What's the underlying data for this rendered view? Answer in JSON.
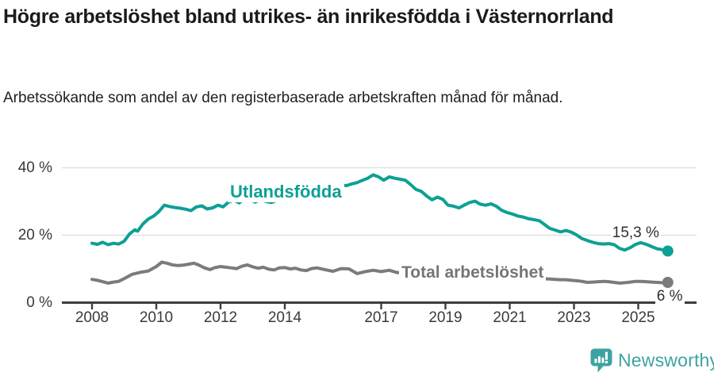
{
  "header": {
    "title": "Högre arbetslöshet bland utrikes- än inrikesfödda i Västernorrland",
    "subtitle": "Arbetssökande som andel av den registerbaserade arbetskraften månad för månad."
  },
  "chart_data": {
    "type": "line",
    "title": "Högre arbetslöshet bland utrikes- än inrikesfödda i Västernorrland",
    "subtitle": "Arbetssökande som andel av den registerbaserade arbetskraften månad för månad.",
    "xlabel": "",
    "ylabel": "",
    "x_ticks": [
      2008,
      2010,
      2012,
      2014,
      2017,
      2019,
      2021,
      2023,
      2025
    ],
    "x_range": [
      2007.6,
      2026.8
    ],
    "y_ticks": [
      {
        "value": 40,
        "label": "40 %"
      },
      {
        "value": 20,
        "label": "20 %"
      },
      {
        "value": 0,
        "label": "0 %"
      }
    ],
    "ylim": [
      0,
      43
    ],
    "grid": true,
    "legend_position": "inline-labels",
    "series": [
      {
        "name": "Utlandsfödda",
        "color": "#0da094",
        "end_label": "15,3 %",
        "end_value": 15.3,
        "points": [
          [
            2008.0,
            17.6
          ],
          [
            2008.17,
            17.3
          ],
          [
            2008.33,
            17.9
          ],
          [
            2008.5,
            17.2
          ],
          [
            2008.67,
            17.6
          ],
          [
            2008.83,
            17.4
          ],
          [
            2009.0,
            18.2
          ],
          [
            2009.17,
            20.4
          ],
          [
            2009.33,
            21.6
          ],
          [
            2009.42,
            21.2
          ],
          [
            2009.58,
            23.3
          ],
          [
            2009.75,
            24.8
          ],
          [
            2009.92,
            25.7
          ],
          [
            2010.08,
            27.0
          ],
          [
            2010.25,
            28.9
          ],
          [
            2010.42,
            28.5
          ],
          [
            2010.58,
            28.2
          ],
          [
            2010.75,
            28.0
          ],
          [
            2010.92,
            27.7
          ],
          [
            2011.08,
            27.3
          ],
          [
            2011.25,
            28.4
          ],
          [
            2011.42,
            28.7
          ],
          [
            2011.58,
            27.8
          ],
          [
            2011.75,
            28.1
          ],
          [
            2011.92,
            28.9
          ],
          [
            2012.08,
            28.4
          ],
          [
            2012.25,
            29.8
          ],
          [
            2012.42,
            30.4
          ],
          [
            2012.58,
            29.6
          ],
          [
            2012.75,
            31.0
          ],
          [
            2012.92,
            30.5
          ],
          [
            2013.08,
            29.8
          ],
          [
            2013.25,
            30.6
          ],
          [
            2013.42,
            30.0
          ],
          [
            2013.58,
            29.7
          ],
          [
            2013.75,
            30.3
          ],
          [
            2013.92,
            30.6
          ],
          [
            2014.08,
            30.2
          ],
          [
            2014.25,
            31.2
          ],
          [
            2014.42,
            31.4
          ],
          [
            2014.58,
            31.1
          ],
          [
            2014.75,
            31.9
          ],
          [
            2014.92,
            32.4
          ],
          [
            2015.08,
            32.9
          ],
          [
            2015.25,
            33.9
          ],
          [
            2015.42,
            34.6
          ],
          [
            2015.58,
            35.3
          ],
          [
            2015.75,
            34.9
          ],
          [
            2015.92,
            34.7
          ],
          [
            2016.08,
            35.2
          ],
          [
            2016.25,
            35.6
          ],
          [
            2016.42,
            36.3
          ],
          [
            2016.58,
            36.9
          ],
          [
            2016.75,
            37.9
          ],
          [
            2016.92,
            37.3
          ],
          [
            2017.08,
            36.3
          ],
          [
            2017.25,
            37.3
          ],
          [
            2017.42,
            36.9
          ],
          [
            2017.58,
            36.6
          ],
          [
            2017.75,
            36.3
          ],
          [
            2017.92,
            35.0
          ],
          [
            2018.08,
            33.6
          ],
          [
            2018.25,
            33.0
          ],
          [
            2018.42,
            31.6
          ],
          [
            2018.58,
            30.5
          ],
          [
            2018.75,
            31.3
          ],
          [
            2018.92,
            30.6
          ],
          [
            2019.08,
            28.9
          ],
          [
            2019.25,
            28.6
          ],
          [
            2019.42,
            28.1
          ],
          [
            2019.58,
            28.9
          ],
          [
            2019.75,
            29.7
          ],
          [
            2019.92,
            30.1
          ],
          [
            2020.08,
            29.2
          ],
          [
            2020.25,
            28.9
          ],
          [
            2020.42,
            29.3
          ],
          [
            2020.58,
            28.6
          ],
          [
            2020.75,
            27.4
          ],
          [
            2020.92,
            26.7
          ],
          [
            2021.08,
            26.3
          ],
          [
            2021.25,
            25.7
          ],
          [
            2021.42,
            25.4
          ],
          [
            2021.58,
            24.9
          ],
          [
            2021.75,
            24.6
          ],
          [
            2021.92,
            24.3
          ],
          [
            2022.08,
            23.2
          ],
          [
            2022.25,
            22.0
          ],
          [
            2022.42,
            21.5
          ],
          [
            2022.58,
            21.0
          ],
          [
            2022.75,
            21.4
          ],
          [
            2022.92,
            20.9
          ],
          [
            2023.08,
            20.1
          ],
          [
            2023.25,
            19.0
          ],
          [
            2023.42,
            18.4
          ],
          [
            2023.58,
            17.9
          ],
          [
            2023.75,
            17.5
          ],
          [
            2023.92,
            17.4
          ],
          [
            2024.08,
            17.5
          ],
          [
            2024.25,
            17.2
          ],
          [
            2024.42,
            16.1
          ],
          [
            2024.58,
            15.6
          ],
          [
            2024.75,
            16.3
          ],
          [
            2024.92,
            17.3
          ],
          [
            2025.08,
            17.8
          ],
          [
            2025.25,
            17.3
          ],
          [
            2025.42,
            16.6
          ],
          [
            2025.58,
            16.0
          ],
          [
            2025.75,
            15.7
          ],
          [
            2025.92,
            15.3
          ]
        ]
      },
      {
        "name": "Total arbetslöshet",
        "color": "#7b7b7b",
        "end_label": "6 %",
        "end_value": 6.0,
        "points": [
          [
            2008.0,
            6.9
          ],
          [
            2008.17,
            6.6
          ],
          [
            2008.33,
            6.2
          ],
          [
            2008.5,
            5.8
          ],
          [
            2008.67,
            6.1
          ],
          [
            2008.83,
            6.3
          ],
          [
            2009.0,
            7.1
          ],
          [
            2009.25,
            8.4
          ],
          [
            2009.5,
            9.0
          ],
          [
            2009.75,
            9.4
          ],
          [
            2010.0,
            10.7
          ],
          [
            2010.17,
            12.0
          ],
          [
            2010.33,
            11.7
          ],
          [
            2010.5,
            11.2
          ],
          [
            2010.67,
            11.0
          ],
          [
            2010.83,
            11.1
          ],
          [
            2011.0,
            11.4
          ],
          [
            2011.17,
            11.7
          ],
          [
            2011.33,
            11.1
          ],
          [
            2011.5,
            10.3
          ],
          [
            2011.67,
            9.8
          ],
          [
            2011.83,
            10.4
          ],
          [
            2012.0,
            10.7
          ],
          [
            2012.17,
            10.5
          ],
          [
            2012.33,
            10.3
          ],
          [
            2012.5,
            10.1
          ],
          [
            2012.67,
            10.8
          ],
          [
            2012.83,
            11.2
          ],
          [
            2013.0,
            10.6
          ],
          [
            2013.17,
            10.2
          ],
          [
            2013.33,
            10.5
          ],
          [
            2013.5,
            9.9
          ],
          [
            2013.67,
            9.7
          ],
          [
            2013.83,
            10.3
          ],
          [
            2014.0,
            10.4
          ],
          [
            2014.17,
            10.0
          ],
          [
            2014.33,
            10.2
          ],
          [
            2014.5,
            9.7
          ],
          [
            2014.67,
            9.5
          ],
          [
            2014.83,
            10.1
          ],
          [
            2015.0,
            10.3
          ],
          [
            2015.25,
            9.8
          ],
          [
            2015.5,
            9.3
          ],
          [
            2015.75,
            10.1
          ],
          [
            2016.0,
            10.0
          ],
          [
            2016.25,
            8.6
          ],
          [
            2016.5,
            9.2
          ],
          [
            2016.75,
            9.6
          ],
          [
            2017.0,
            9.2
          ],
          [
            2017.25,
            9.6
          ],
          [
            2017.5,
            8.9
          ],
          [
            2017.75,
            9.1
          ],
          [
            2018.0,
            8.8
          ],
          [
            2018.25,
            8.5
          ],
          [
            2018.5,
            8.3
          ],
          [
            2018.75,
            8.5
          ],
          [
            2019.0,
            8.2
          ],
          [
            2019.25,
            8.0
          ],
          [
            2019.5,
            8.2
          ],
          [
            2019.75,
            8.0
          ],
          [
            2020.0,
            7.9
          ],
          [
            2020.25,
            8.2
          ],
          [
            2020.5,
            8.4
          ],
          [
            2020.75,
            8.1
          ],
          [
            2021.0,
            7.8
          ],
          [
            2021.25,
            7.5
          ],
          [
            2021.5,
            7.3
          ],
          [
            2021.75,
            7.2
          ],
          [
            2022.0,
            7.1
          ],
          [
            2022.25,
            7.0
          ],
          [
            2022.42,
            6.9
          ],
          [
            2022.58,
            6.8
          ],
          [
            2022.75,
            6.8
          ],
          [
            2022.92,
            6.6
          ],
          [
            2023.08,
            6.5
          ],
          [
            2023.25,
            6.3
          ],
          [
            2023.42,
            6.0
          ],
          [
            2023.58,
            6.1
          ],
          [
            2023.75,
            6.2
          ],
          [
            2023.92,
            6.3
          ],
          [
            2024.08,
            6.2
          ],
          [
            2024.25,
            6.0
          ],
          [
            2024.42,
            5.8
          ],
          [
            2024.58,
            5.9
          ],
          [
            2024.75,
            6.1
          ],
          [
            2024.92,
            6.3
          ],
          [
            2025.08,
            6.3
          ],
          [
            2025.25,
            6.2
          ],
          [
            2025.42,
            6.1
          ],
          [
            2025.58,
            6.0
          ],
          [
            2025.75,
            5.9
          ],
          [
            2025.92,
            6.0
          ]
        ]
      }
    ]
  },
  "footer": {
    "brand": "Newsworthy"
  },
  "colors": {
    "accent_teal": "#0da094",
    "logo_teal": "#3da3a1",
    "gray_line": "#7b7b7b",
    "grid": "#dcdcdc",
    "axis": "#3d3d3d",
    "text_dark": "#1b1b1b"
  }
}
